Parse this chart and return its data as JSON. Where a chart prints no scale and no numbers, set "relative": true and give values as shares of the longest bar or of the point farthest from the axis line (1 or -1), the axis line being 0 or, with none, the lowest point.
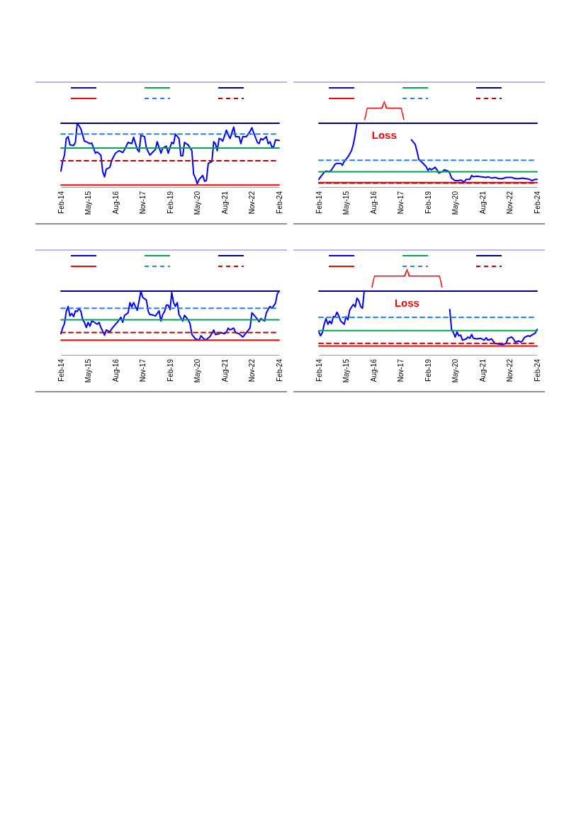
{
  "chart_data": [
    {
      "type": "line",
      "relative": true,
      "xlim": [
        "2014-02",
        "2024-02"
      ],
      "xticks": [
        {
          "value": "2014-02",
          "label": "Feb-14"
        },
        {
          "value": "2015-05",
          "label": "May-15"
        },
        {
          "value": "2016-08",
          "label": "Aug-16"
        },
        {
          "value": "2017-11",
          "label": "Nov-17"
        },
        {
          "value": "2019-02",
          "label": "Feb-19"
        },
        {
          "value": "2020-05",
          "label": "May-20"
        },
        {
          "value": "2021-08",
          "label": "Aug-21"
        },
        {
          "value": "2022-11",
          "label": "Nov-22"
        },
        {
          "value": "2024-02",
          "label": "Feb-24"
        }
      ],
      "series": [
        {
          "color": "#0000ff",
          "x": [
            "2014-02",
            "2014-03",
            "2014-04",
            "2014-05",
            "2014-06",
            "2014-07",
            "2014-09",
            "2014-10",
            "2014-11",
            "2014-12",
            "2015-01",
            "2015-03",
            "2015-04",
            "2015-06",
            "2015-07",
            "2015-08",
            "2015-09",
            "2015-10",
            "2015-12",
            "2016-01",
            "2016-02",
            "2016-03",
            "2016-05",
            "2016-06",
            "2016-08",
            "2016-10",
            "2016-12",
            "2017-01",
            "2017-03",
            "2017-05",
            "2017-06",
            "2017-08",
            "2017-09",
            "2017-10",
            "2017-12",
            "2018-01",
            "2018-03",
            "2018-04",
            "2018-06",
            "2018-07",
            "2018-09",
            "2018-10",
            "2018-12",
            "2019-01",
            "2019-03",
            "2019-04",
            "2019-05",
            "2019-07",
            "2019-08",
            "2019-09",
            "2019-10",
            "2019-12",
            "2020-02",
            "2020-03",
            "2020-04",
            "2020-05",
            "2020-06",
            "2020-08",
            "2020-09",
            "2020-10",
            "2020-11",
            "2021-01",
            "2021-02",
            "2021-03",
            "2021-04",
            "2021-05",
            "2021-06",
            "2021-07",
            "2021-09",
            "2021-10",
            "2021-11",
            "2022-01",
            "2022-02",
            "2022-04",
            "2022-05",
            "2022-06",
            "2022-08",
            "2022-10",
            "2022-11",
            "2022-12",
            "2023-02",
            "2023-03",
            "2023-04",
            "2023-05",
            "2023-07",
            "2023-08",
            "2023-09",
            "2023-10",
            "2023-11",
            "2023-12",
            "2024-02"
          ],
          "values": [
            0.25,
            0.4,
            0.5,
            0.76,
            0.79,
            0.66,
            0.65,
            0.7,
            1.0,
            0.96,
            0.91,
            0.72,
            0.71,
            0.68,
            0.69,
            0.61,
            0.53,
            0.55,
            0.5,
            0.24,
            0.16,
            0.28,
            0.31,
            0.42,
            0.53,
            0.57,
            0.54,
            0.59,
            0.7,
            0.68,
            0.78,
            0.59,
            0.55,
            0.81,
            0.79,
            0.61,
            0.5,
            0.53,
            0.59,
            0.71,
            0.53,
            0.61,
            0.64,
            0.53,
            0.7,
            0.68,
            0.83,
            0.76,
            0.49,
            0.49,
            0.7,
            0.66,
            0.57,
            0.2,
            0.14,
            0.05,
            0.12,
            0.18,
            0.09,
            0.1,
            0.37,
            0.4,
            0.71,
            0.68,
            0.57,
            0.76,
            0.75,
            0.72,
            0.89,
            0.82,
            0.76,
            0.94,
            0.79,
            0.79,
            0.68,
            0.79,
            0.79,
            0.87,
            0.93,
            0.85,
            0.7,
            0.68,
            0.76,
            0.74,
            0.79,
            0.68,
            0.71,
            0.63,
            0.63,
            0.74,
            0.73
          ]
        },
        {
          "color": "#00a651",
          "x": [
            "2014-02",
            "2024-02"
          ],
          "values": [
            0.61,
            0.61
          ]
        },
        {
          "color": "#000090",
          "x": [
            "2014-02",
            "2024-02"
          ],
          "values": [
            1,
            1
          ]
        },
        {
          "color": "#ff0000",
          "x": [
            "2014-02",
            "2024-02"
          ],
          "values": [
            0.03,
            0.03
          ]
        },
        {
          "color": "#1e7fff",
          "line_style": "dashed",
          "x": [
            "2014-02",
            "2024-02"
          ],
          "values": [
            0.83,
            0.83
          ]
        },
        {
          "color": "#c00000",
          "line_style": "dashed",
          "x": [
            "2014-02",
            "2024-02"
          ],
          "values": [
            0.41,
            0.41
          ]
        }
      ]
    },
    {
      "type": "line",
      "relative": true,
      "xlim": [
        "2014-02",
        "2024-02"
      ],
      "xticks": [
        {
          "value": "2014-02",
          "label": "Feb-14"
        },
        {
          "value": "2015-05",
          "label": "May-15"
        },
        {
          "value": "2016-08",
          "label": "Aug-16"
        },
        {
          "value": "2017-11",
          "label": "Nov-17"
        },
        {
          "value": "2019-02",
          "label": "Feb-19"
        },
        {
          "value": "2020-05",
          "label": "May-20"
        },
        {
          "value": "2021-08",
          "label": "Aug-21"
        },
        {
          "value": "2022-11",
          "label": "Nov-22"
        },
        {
          "value": "2024-02",
          "label": "Feb-24"
        }
      ],
      "annotations": [
        "Loss"
      ],
      "series": [
        {
          "color": "#0000ff",
          "x": [
            "2014-02",
            "2014-03",
            "2014-05",
            "2014-06",
            "2014-08",
            "2014-09",
            "2014-11",
            "2014-12",
            "2015-02",
            "2015-03",
            "2015-04",
            "2015-06",
            "2015-07",
            "2015-08",
            "2015-09",
            "2015-10",
            "2015-11",
            "2017-01",
            "2018-05",
            "2018-07",
            "2018-08",
            "2018-09",
            "2018-11",
            "2019-01",
            "2019-02",
            "2019-03",
            "2019-04",
            "2019-06",
            "2019-07",
            "2019-08",
            "2019-10",
            "2019-11",
            "2020-01",
            "2020-02",
            "2020-03",
            "2020-05",
            "2020-07",
            "2020-08",
            "2020-10",
            "2020-11",
            "2021-01",
            "2021-02",
            "2021-03",
            "2021-05",
            "2021-07",
            "2021-10",
            "2021-11",
            "2022-01",
            "2022-03",
            "2022-05",
            "2022-07",
            "2022-09",
            "2022-12",
            "2023-02",
            "2023-04",
            "2023-06",
            "2023-08",
            "2023-10",
            "2023-11",
            "2024-01",
            "2024-02"
          ],
          "values": [
            0.12,
            0.16,
            0.23,
            0.25,
            0.24,
            0.27,
            0.36,
            0.37,
            0.37,
            0.34,
            0.4,
            0.47,
            0.52,
            0.57,
            0.67,
            0.82,
            1.0,
            null,
            0.74,
            0.67,
            0.56,
            0.43,
            0.38,
            0.32,
            0.26,
            0.29,
            0.27,
            0.31,
            0.27,
            0.22,
            0.24,
            0.27,
            0.25,
            0.22,
            0.14,
            0.1,
            0.1,
            0.11,
            0.08,
            0.12,
            0.12,
            0.18,
            0.16,
            0.17,
            0.16,
            0.15,
            0.16,
            0.14,
            0.15,
            0.13,
            0.13,
            0.15,
            0.15,
            0.13,
            0.13,
            0.14,
            0.13,
            0.12,
            0.1,
            0.12,
            0.12
          ]
        },
        {
          "color": "#00a651",
          "x": [
            "2014-02",
            "2024-02"
          ],
          "values": [
            0.24,
            0.24
          ]
        },
        {
          "color": "#000090",
          "x": [
            "2014-02",
            "2024-02"
          ],
          "values": [
            1,
            1
          ]
        },
        {
          "color": "#ff0000",
          "x": [
            "2014-02",
            "2024-02"
          ],
          "values": [
            0.07,
            0.07
          ]
        },
        {
          "color": "#1e7fff",
          "line_style": "dashed",
          "x": [
            "2014-02",
            "2024-02"
          ],
          "values": [
            0.42,
            0.42
          ]
        },
        {
          "color": "#c00000",
          "line_style": "dashed",
          "x": [
            "2014-02",
            "2024-02"
          ],
          "values": [
            0.06,
            0.06
          ]
        }
      ]
    },
    {
      "type": "line",
      "relative": true,
      "xlim": [
        "2014-02",
        "2024-02"
      ],
      "xticks": [
        {
          "value": "2014-02",
          "label": "Feb-14"
        },
        {
          "value": "2015-05",
          "label": "May-15"
        },
        {
          "value": "2016-08",
          "label": "Aug-16"
        },
        {
          "value": "2017-11",
          "label": "Nov-17"
        },
        {
          "value": "2019-02",
          "label": "Feb-19"
        },
        {
          "value": "2020-05",
          "label": "May-20"
        },
        {
          "value": "2021-08",
          "label": "Aug-21"
        },
        {
          "value": "2022-11",
          "label": "Nov-22"
        },
        {
          "value": "2024-02",
          "label": "Feb-24"
        }
      ],
      "series": [
        {
          "color": "#0000ff",
          "x": [
            "2014-02",
            "2014-03",
            "2014-04",
            "2014-05",
            "2014-06",
            "2014-07",
            "2014-08",
            "2014-09",
            "2014-10",
            "2014-11",
            "2014-12",
            "2015-01",
            "2015-02",
            "2015-03",
            "2015-04",
            "2015-05",
            "2015-06",
            "2015-07",
            "2015-08",
            "2015-10",
            "2015-11",
            "2015-12",
            "2016-02",
            "2016-03",
            "2016-05",
            "2016-06",
            "2016-08",
            "2016-09",
            "2016-11",
            "2016-12",
            "2017-01",
            "2017-03",
            "2017-04",
            "2017-05",
            "2017-06",
            "2017-07",
            "2017-08",
            "2017-09",
            "2017-10",
            "2017-11",
            "2018-01",
            "2018-02",
            "2018-03",
            "2018-04",
            "2018-06",
            "2018-07",
            "2018-08",
            "2018-09",
            "2018-10",
            "2018-11",
            "2018-12",
            "2019-01",
            "2019-02",
            "2019-03",
            "2019-04",
            "2019-05",
            "2019-06",
            "2019-07",
            "2019-09",
            "2019-10",
            "2019-12",
            "2020-01",
            "2020-02",
            "2020-04",
            "2020-06",
            "2020-07",
            "2020-08",
            "2020-09",
            "2020-10",
            "2020-12",
            "2021-02",
            "2021-03",
            "2021-05",
            "2021-06",
            "2021-08",
            "2021-09",
            "2021-10",
            "2021-11",
            "2022-01",
            "2022-02",
            "2022-04",
            "2022-06",
            "2022-08",
            "2022-10",
            "2022-11",
            "2022-12",
            "2023-02",
            "2023-03",
            "2023-04",
            "2023-06",
            "2023-07",
            "2023-09",
            "2023-10",
            "2023-12",
            "2024-01",
            "2024-02"
          ],
          "values": [
            0.33,
            0.42,
            0.49,
            0.68,
            0.76,
            0.61,
            0.65,
            0.6,
            0.69,
            0.68,
            0.73,
            0.68,
            0.55,
            0.51,
            0.43,
            0.51,
            0.45,
            0.53,
            0.52,
            0.48,
            0.51,
            0.43,
            0.31,
            0.39,
            0.36,
            0.41,
            0.48,
            0.51,
            0.59,
            0.51,
            0.62,
            0.66,
            0.82,
            0.75,
            0.82,
            0.76,
            0.7,
            0.85,
            1.0,
            0.9,
            0.86,
            0.68,
            0.63,
            0.63,
            0.61,
            0.65,
            0.69,
            0.53,
            0.63,
            0.68,
            0.78,
            0.78,
            0.71,
            0.98,
            0.82,
            0.76,
            0.82,
            0.63,
            0.53,
            0.62,
            0.55,
            0.49,
            0.32,
            0.25,
            0.23,
            0.3,
            0.27,
            0.24,
            0.24,
            0.29,
            0.39,
            0.32,
            0.33,
            0.35,
            0.33,
            0.36,
            0.42,
            0.39,
            0.42,
            0.35,
            0.33,
            0.28,
            0.35,
            0.42,
            0.66,
            0.63,
            0.56,
            0.52,
            0.57,
            0.53,
            0.66,
            0.76,
            0.73,
            0.81,
            0.96,
            1.0
          ]
        },
        {
          "color": "#00a651",
          "x": [
            "2014-02",
            "2024-02"
          ],
          "values": [
            0.55,
            0.55
          ]
        },
        {
          "color": "#000090",
          "x": [
            "2014-02",
            "2024-02"
          ],
          "values": [
            1,
            1
          ]
        },
        {
          "color": "#ff0000",
          "x": [
            "2014-02",
            "2024-02"
          ],
          "values": [
            0.23,
            0.23
          ]
        },
        {
          "color": "#1e7fff",
          "line_style": "dashed",
          "x": [
            "2014-02",
            "2024-02"
          ],
          "values": [
            0.73,
            0.73
          ]
        },
        {
          "color": "#c00000",
          "line_style": "dashed",
          "x": [
            "2014-02",
            "2024-02"
          ],
          "values": [
            0.35,
            0.35
          ]
        }
      ]
    },
    {
      "type": "line",
      "relative": true,
      "xlim": [
        "2014-02",
        "2024-02"
      ],
      "xticks": [
        {
          "value": "2014-02",
          "label": "Feb-14"
        },
        {
          "value": "2015-05",
          "label": "May-15"
        },
        {
          "value": "2016-08",
          "label": "Aug-16"
        },
        {
          "value": "2017-11",
          "label": "Nov-17"
        },
        {
          "value": "2019-02",
          "label": "Feb-19"
        },
        {
          "value": "2020-05",
          "label": "May-20"
        },
        {
          "value": "2021-08",
          "label": "Aug-21"
        },
        {
          "value": "2022-11",
          "label": "Nov-22"
        },
        {
          "value": "2024-02",
          "label": "Feb-24"
        }
      ],
      "annotations": [
        "Loss"
      ],
      "series": [
        {
          "color": "#0000ff",
          "x": [
            "2014-02",
            "2014-03",
            "2014-04",
            "2014-05",
            "2014-06",
            "2014-07",
            "2014-08",
            "2014-09",
            "2014-10",
            "2014-11",
            "2014-12",
            "2015-01",
            "2015-02",
            "2015-04",
            "2015-05",
            "2015-06",
            "2015-07",
            "2015-08",
            "2015-09",
            "2015-10",
            "2015-11",
            "2015-12",
            "2016-01",
            "2016-02",
            "2016-03",
            "2018-01",
            "2020-02",
            "2020-03",
            "2020-04",
            "2020-05",
            "2020-06",
            "2020-07",
            "2020-08",
            "2020-09",
            "2020-11",
            "2020-12",
            "2021-01",
            "2021-02",
            "2021-03",
            "2021-05",
            "2021-07",
            "2021-09",
            "2021-10",
            "2021-11",
            "2022-01",
            "2022-02",
            "2022-03",
            "2022-05",
            "2022-07",
            "2022-09",
            "2022-10",
            "2022-12",
            "2023-01",
            "2023-02",
            "2023-04",
            "2023-05",
            "2023-06",
            "2023-07",
            "2023-09",
            "2023-10",
            "2023-11",
            "2024-01",
            "2024-02"
          ],
          "values": [
            0.36,
            0.3,
            0.35,
            0.48,
            0.57,
            0.48,
            0.53,
            0.49,
            0.6,
            0.6,
            0.67,
            0.61,
            0.53,
            0.48,
            0.6,
            0.55,
            0.7,
            0.75,
            0.79,
            0.75,
            0.89,
            0.85,
            0.76,
            0.73,
            1.0,
            null,
            0.71,
            0.4,
            0.35,
            0.28,
            0.36,
            0.3,
            0.31,
            0.23,
            0.25,
            0.28,
            0.26,
            0.32,
            0.26,
            0.25,
            0.26,
            0.23,
            0.27,
            0.23,
            0.25,
            0.21,
            0.18,
            0.17,
            0.16,
            0.18,
            0.26,
            0.28,
            0.25,
            0.2,
            0.22,
            0.2,
            0.22,
            0.27,
            0.3,
            0.29,
            0.31,
            0.34,
            0.4
          ]
        },
        {
          "color": "#00a651",
          "x": [
            "2014-02",
            "2024-02"
          ],
          "values": [
            0.38,
            0.38
          ]
        },
        {
          "color": "#000090",
          "x": [
            "2014-02",
            "2024-02"
          ],
          "values": [
            1,
            1
          ]
        },
        {
          "color": "#ff0000",
          "x": [
            "2014-02",
            "2024-02"
          ],
          "values": [
            0.14,
            0.14
          ]
        },
        {
          "color": "#1e7fff",
          "line_style": "dashed",
          "x": [
            "2014-02",
            "2024-02"
          ],
          "values": [
            0.59,
            0.59
          ]
        },
        {
          "color": "#c00000",
          "line_style": "dashed",
          "x": [
            "2014-02",
            "2024-02"
          ],
          "values": [
            0.18,
            0.18
          ]
        }
      ]
    }
  ]
}
